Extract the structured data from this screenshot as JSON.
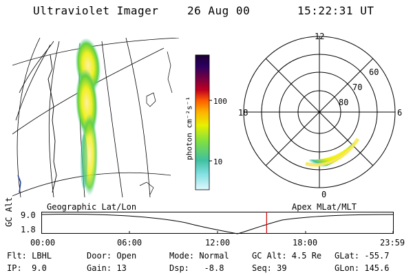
{
  "header": {
    "instrument": "Ultraviolet Imager",
    "date": "26 Aug 00",
    "time": "15:22:31 UT"
  },
  "colorbar": {
    "unit_label": "photon cm⁻²s⁻¹",
    "ticks": [
      "100",
      "10"
    ],
    "colors": [
      "#1a0030",
      "#2a0060",
      "#7a0040",
      "#c00020",
      "#ff6000",
      "#ffb000",
      "#e8f000",
      "#80e040",
      "#40c0a0",
      "#80e0e0",
      "#e0f8ff"
    ]
  },
  "polar": {
    "mlt_labels": {
      "top": "12",
      "left": "18",
      "right": "6",
      "bottom": "0"
    },
    "lat_labels": [
      "60",
      "70",
      "80"
    ]
  },
  "orbit": {
    "left_label": "Geographic Lat/Lon",
    "right_label": "Apex MLat/MLT",
    "axis_title": "GC Alt",
    "y_ticks": [
      "9.0",
      "1.8"
    ],
    "x_ticks": [
      "00:00",
      "06:00",
      "12:00",
      "18:00",
      "23:59"
    ],
    "marker_time_hours": 15.375,
    "marker_color": "#d00000"
  },
  "status": {
    "row1": {
      "flt": "Flt: LBHL",
      "door": "Door: Open",
      "mode": "Mode: Normal",
      "gcalt": "GC Alt: 4.5 Re",
      "glat": "GLat: -55.7"
    },
    "row2": {
      "ip": "IP:  9.0",
      "gain": "Gain: 13",
      "dsp": "Dsp:   -8.8",
      "seq": "Seq: 39",
      "glon": "GLon: 145.6"
    }
  }
}
